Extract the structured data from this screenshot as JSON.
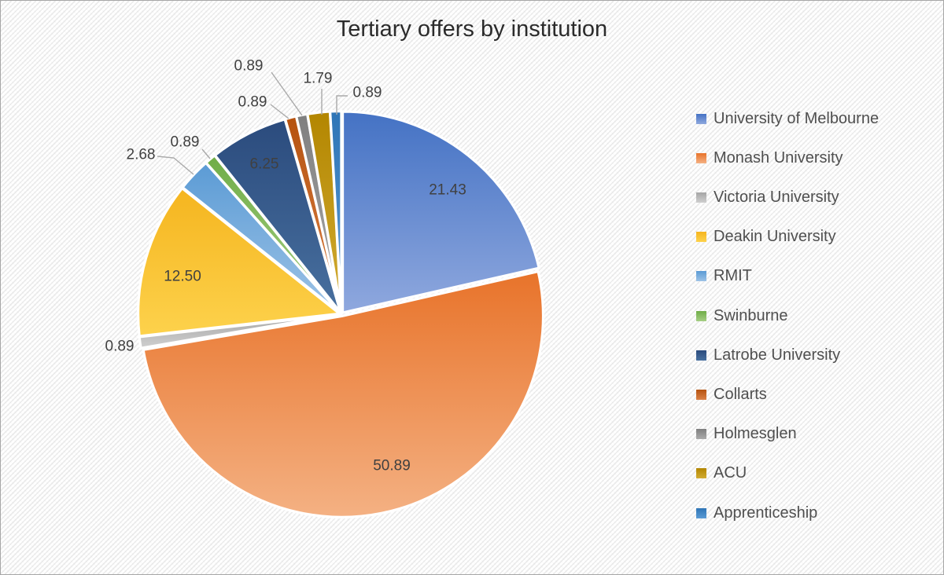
{
  "window": {
    "background_pattern": "light-diagonal-stripes",
    "border_color": "#a6a6a6"
  },
  "chart_data": {
    "type": "pie",
    "title": "Tertiary offers by institution",
    "unit": "percent",
    "direction": "clockwise",
    "start_angle_deg": 0,
    "legend_position": "right",
    "grid": false,
    "label_color": "#404040",
    "leader_line_color": "#a9a9a9",
    "slice_border_color": "#ffffff",
    "series": [
      {
        "label": "University of Melbourne",
        "value": 21.43,
        "display": "21.43",
        "color": "#4472C4",
        "color_light": "#8FA8DE",
        "label_placement": "inside"
      },
      {
        "label": "Monash University",
        "value": 50.89,
        "display": "50.89",
        "color": "#E8732A",
        "color_light": "#F4B183",
        "label_placement": "inside"
      },
      {
        "label": "Victoria University",
        "value": 0.89,
        "display": "0.89",
        "color": "#A5A5A5",
        "color_light": "#CFCFCF",
        "label_placement": "outside"
      },
      {
        "label": "Deakin University",
        "value": 12.5,
        "display": "12.50",
        "color": "#F5B51F",
        "color_light": "#FDD24C",
        "label_placement": "inside"
      },
      {
        "label": "RMIT",
        "value": 2.68,
        "display": "2.68",
        "color": "#5B9BD5",
        "color_light": "#9DC3E6",
        "label_placement": "outside"
      },
      {
        "label": "Swinburne",
        "value": 0.89,
        "display": "0.89",
        "color": "#70AD47",
        "color_light": "#A5CE84",
        "label_placement": "outside"
      },
      {
        "label": "Latrobe University",
        "value": 6.25,
        "display": "6.25",
        "color": "#2B4B7D",
        "color_light": "#48709F",
        "label_placement": "inside"
      },
      {
        "label": "Collarts",
        "value": 0.89,
        "display": "0.89",
        "color": "#B5520F",
        "color_light": "#DA8146",
        "label_placement": "outside"
      },
      {
        "label": "Holmesglen",
        "value": 0.89,
        "display": "0.89",
        "color": "#7F7F7F",
        "color_light": "#ABABAB",
        "label_placement": "outside"
      },
      {
        "label": "ACU",
        "value": 1.79,
        "display": "1.79",
        "color": "#B38600",
        "color_light": "#D2AC33",
        "label_placement": "outside"
      },
      {
        "label": "Apprenticeship",
        "value": 0.89,
        "display": "0.89",
        "color": "#2E75B6",
        "color_light": "#5B9BD5",
        "label_placement": "outside"
      }
    ]
  }
}
